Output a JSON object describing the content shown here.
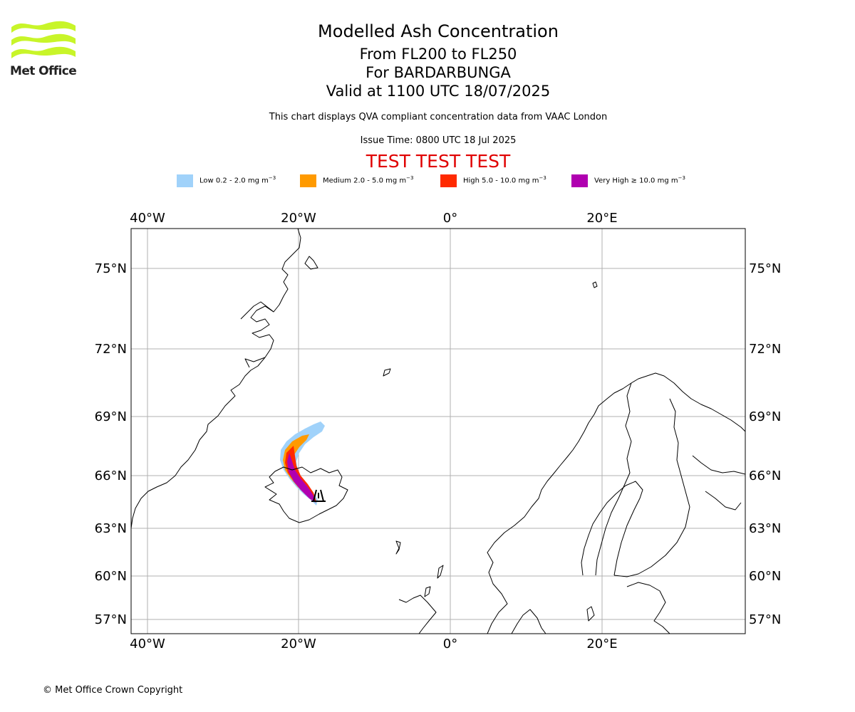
{
  "logo": {
    "text": "Met Office"
  },
  "header": {
    "title": "Modelled Ash Concentration",
    "levels": "From FL200 to FL250",
    "volcano": "For BARDARBUNGA",
    "valid": "Valid at 1100 UTC 18/07/2025",
    "note": "This chart displays QVA compliant concentration data from VAAC London",
    "issue": "Issue Time: 0800 UTC 18 Jul 2025",
    "test_banner": "TEST TEST TEST"
  },
  "legend": [
    {
      "label": "Low 0.2 - 2.0 mg m",
      "unit_exp": "−3",
      "color": "#a0d2fa"
    },
    {
      "label": "Medium 2.0 - 5.0 mg m",
      "unit_exp": "−3",
      "color": "#ff9a00"
    },
    {
      "label": "High 5.0 - 10.0 mg m",
      "unit_exp": "−3",
      "color": "#ff2a00"
    },
    {
      "label": "Very High ≥ 10.0 mg m",
      "unit_exp": "−3",
      "color": "#b000b0"
    }
  ],
  "map": {
    "lon_ticks": [
      "40°W",
      "20°W",
      "0°",
      "20°E"
    ],
    "lat_ticks": [
      "75°N",
      "72°N",
      "69°N",
      "66°N",
      "63°N",
      "60°N",
      "57°N"
    ],
    "grid_color": "#b0b0b0",
    "coast_color": "#000000",
    "volcano_marker": "volcano-symbol-icon"
  },
  "footer": {
    "copyright": "© Met Office Crown Copyright"
  }
}
